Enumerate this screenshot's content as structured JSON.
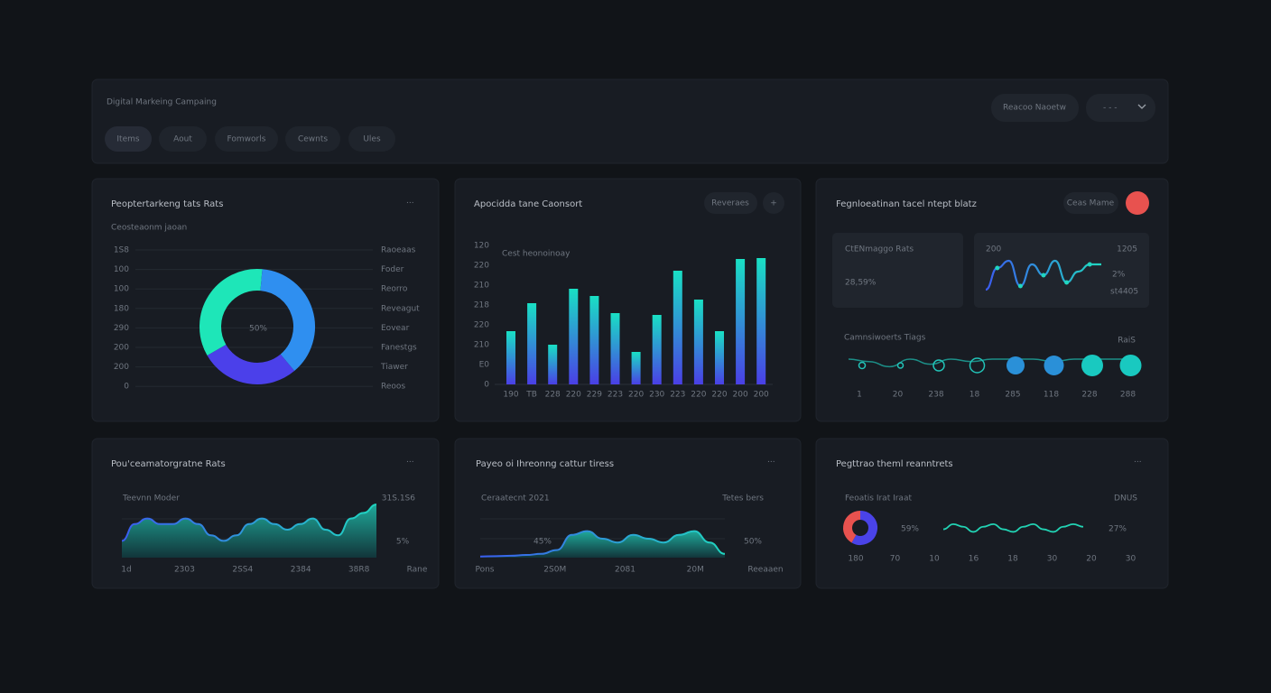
{
  "header": {
    "title": "Digital Markeing Campaing",
    "tabs": [
      "Items",
      "Aout",
      "Fomworls",
      "Cewnts",
      "Ules"
    ],
    "button": "Reacoo Naoetw"
  },
  "donut_panel": {
    "title": "Peoptertarkeng tats Rats",
    "subtitle": "Ceosteaonm jaoan",
    "y_labels": [
      "1S8",
      "100",
      "100",
      "180",
      "290",
      "200",
      "200",
      "0"
    ],
    "legend": [
      "Raoeaas",
      "Foder",
      "Reorro",
      "Reveagut",
      "Eovear",
      "Fanestgs",
      "Tiawer",
      "Reoos"
    ],
    "center_label": "50%"
  },
  "bar_panel": {
    "title": "Apocidda tane Caonsort",
    "button": "Reveraes",
    "add_button": "+",
    "subtitle": "Cest heonoinoay",
    "y_labels": [
      "120",
      "220",
      "210",
      "218",
      "220",
      "210",
      "E0",
      "0"
    ],
    "x_labels": [
      "190",
      "TB",
      "228",
      "220",
      "229",
      "223",
      "220",
      "230",
      "223",
      "220",
      "220",
      "200",
      "200"
    ],
    "values": [
      59,
      90,
      44,
      106,
      98,
      79,
      36,
      77,
      126,
      94,
      59,
      139,
      140
    ],
    "ylim": [
      0,
      150
    ]
  },
  "kpi_panel": {
    "title": "Fegnloeatinan tacel ntept blatz",
    "button": "Ceas Mame",
    "card": {
      "label": "CtENmaggo Rats",
      "value": "28,59%"
    },
    "spark_card": {
      "top_left": "200",
      "top_right": "1205",
      "value": "2%",
      "note": "st4405",
      "line": [
        1,
        7,
        9,
        2,
        8,
        5,
        9,
        3,
        6,
        8,
        8
      ]
    },
    "timeline": {
      "label": "Camnsiwoerts Tiags",
      "right_label": "RaiS",
      "x_labels": [
        "1",
        "20",
        "238",
        "18",
        "285",
        "118",
        "228",
        "288"
      ],
      "line": [
        5,
        4,
        2,
        5,
        3,
        5,
        4,
        5,
        5,
        5,
        4,
        5,
        5,
        5,
        5
      ]
    }
  },
  "area_panels": [
    {
      "title": "Pou'ceamatorgratne Rats",
      "left_label": "Teevnn Moder",
      "right_label": "31S.1S6",
      "big_label": "5%",
      "x_labels": [
        "1d",
        "2303",
        "2SS4",
        "2384",
        "38R8",
        "Rane"
      ],
      "values": [
        3,
        6,
        7,
        6,
        6,
        7,
        6,
        4,
        3,
        4,
        6,
        7,
        6,
        5,
        6,
        7,
        5,
        4,
        7,
        8,
        9.5
      ]
    },
    {
      "title": "Payeo oi Ihreonng cattur tiress",
      "left_label": "Ceraatecnt 2021",
      "right_label": "Tetes bers",
      "inner_label": "45%",
      "big_label": "50%",
      "x_labels": [
        "Pons",
        "2S0M",
        "2081",
        "20M",
        "Reeaaen"
      ],
      "values": [
        0.3,
        0.4,
        0.5,
        0.7,
        1,
        2,
        6,
        7,
        5,
        4,
        6,
        5,
        4,
        6,
        7,
        4,
        1
      ]
    }
  ],
  "ratio_panel": {
    "title": "Pegttrao theml reanntrets",
    "left_label": "Feoatis Irat Iraat",
    "right_label": "DNUS",
    "first_value": "59%",
    "second_value": "27%",
    "line": [
      4,
      6,
      5,
      3,
      5,
      6,
      4,
      3,
      5,
      6,
      4,
      3,
      5,
      6,
      5
    ],
    "x_labels": [
      "180",
      "70",
      "10",
      "16",
      "18",
      "30",
      "20",
      "30"
    ]
  }
}
